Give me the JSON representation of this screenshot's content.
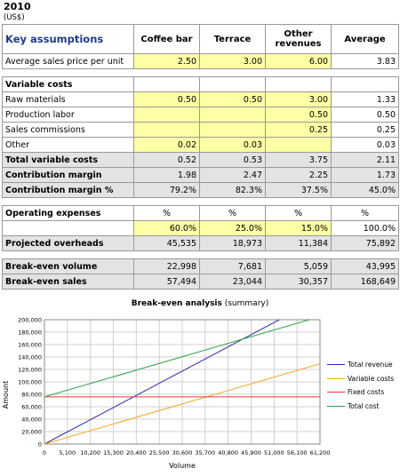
{
  "header": {
    "title": "2010",
    "subtitle": "(US$)"
  },
  "table": {
    "columns": [
      "Key assumptions",
      "Coffee bar",
      "Terrace",
      "Other revenues",
      "Average"
    ],
    "avg_price": {
      "label": "Average sales price per unit",
      "values": [
        "2.50",
        "3.00",
        "6.00",
        "3.83"
      ]
    },
    "variable_costs": {
      "label": "Variable costs",
      "rows": [
        {
          "label": "Raw materials",
          "values": [
            "0.50",
            "0.50",
            "3.00",
            "1.33"
          ]
        },
        {
          "label": "Production labor",
          "values": [
            "",
            "",
            "0.50",
            "0.50"
          ]
        },
        {
          "label": "Sales commissions",
          "values": [
            "",
            "",
            "0.25",
            "0.25"
          ]
        },
        {
          "label": "Other",
          "values": [
            "0.02",
            "0.03",
            "",
            "0.03"
          ]
        }
      ],
      "total": {
        "label": "Total variable costs",
        "values": [
          "0.52",
          "0.53",
          "3.75",
          "2.11"
        ]
      },
      "margin": {
        "label": "Contribution margin",
        "values": [
          "1.98",
          "2.47",
          "2.25",
          "1.73"
        ]
      },
      "margin_pct": {
        "label": "Contribution margin %",
        "values": [
          "79.2%",
          "82.3%",
          "37.5%",
          "45.0%"
        ]
      }
    },
    "operating": {
      "label": "Operating expenses",
      "pct_headers": [
        "%",
        "%",
        "%",
        "%"
      ],
      "pct_values": [
        "60.0%",
        "25.0%",
        "15.0%",
        "100.0%"
      ],
      "overheads": {
        "label": "Projected overheads",
        "values": [
          "45,535",
          "18,973",
          "11,384",
          "75,892"
        ]
      }
    },
    "breakeven": {
      "volume": {
        "label": "Break-even volume",
        "values": [
          "22,998",
          "7,681",
          "5,059",
          "43,995"
        ]
      },
      "sales": {
        "label": "Break-even sales",
        "values": [
          "57,494",
          "23,044",
          "30,357",
          "168,649"
        ]
      }
    }
  },
  "chart_title": {
    "bold": "Break-even analysis",
    "rest": " (summary)"
  },
  "chart_data": {
    "type": "line",
    "title": "Break-even analysis (summary)",
    "xlabel": "Volume",
    "ylabel": "Amount",
    "x": [
      0,
      61200
    ],
    "xticks": [
      0,
      5100,
      10200,
      15300,
      20400,
      25500,
      30600,
      35700,
      40800,
      45900,
      51000,
      56100,
      61200
    ],
    "xtick_labels": [
      "0",
      "5,100",
      "10,200",
      "15,300",
      "20,400",
      "25,500",
      "30,600",
      "35,700",
      "40,800",
      "45,900",
      "51,000",
      "56,100",
      "61,200"
    ],
    "ylim": [
      0,
      200000
    ],
    "yticks": [
      0,
      20000,
      40000,
      60000,
      80000,
      100000,
      120000,
      140000,
      160000,
      180000,
      200000
    ],
    "ytick_labels": [
      "0",
      "20,000",
      "40,000",
      "60,000",
      "80,000",
      "100,000",
      "120,000",
      "140,000",
      "160,000",
      "180,000",
      "200,000"
    ],
    "grid": true,
    "legend": "right",
    "series": [
      {
        "name": "Total revenue",
        "color": "#2b2b9e",
        "values": [
          0,
          234600
        ]
      },
      {
        "name": "Variable costs",
        "color": "#f5a623",
        "values": [
          0,
          129100
        ]
      },
      {
        "name": "Fixed costs",
        "color": "#e8383d",
        "values": [
          75892,
          75892
        ]
      },
      {
        "name": "Total cost",
        "color": "#2ea043",
        "values": [
          75892,
          204992
        ]
      }
    ]
  }
}
